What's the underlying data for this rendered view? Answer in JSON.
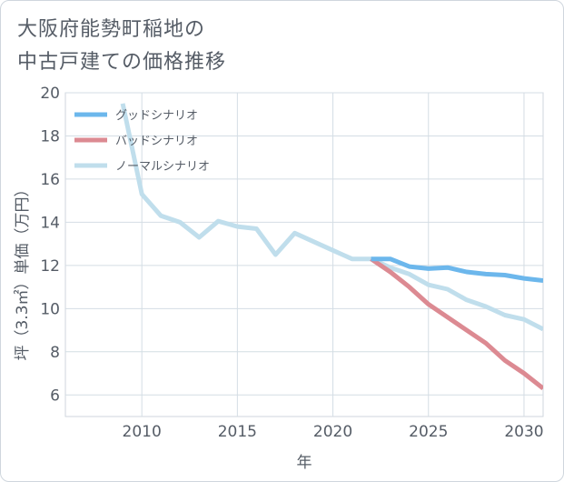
{
  "title_line1": "大阪府能勢町稲地の",
  "title_line2": "中古戸建ての価格推移",
  "chart_data": {
    "type": "line",
    "xlabel": "年",
    "ylabel": "坪（3.3㎡）単価（万円）",
    "xlim": [
      2006,
      2031
    ],
    "ylim": [
      5,
      20
    ],
    "xticks": [
      2010,
      2015,
      2020,
      2025,
      2030
    ],
    "yticks": [
      6,
      8,
      10,
      12,
      14,
      16,
      18,
      20
    ],
    "grid": true,
    "legend_position": "top-left",
    "series": [
      {
        "name": "グッドシナリオ",
        "color": "#6cb7ec",
        "x": [
          2022,
          2023,
          2024,
          2025,
          2026,
          2027,
          2028,
          2029,
          2030,
          2031
        ],
        "y": [
          12.3,
          12.3,
          11.95,
          11.85,
          11.9,
          11.7,
          11.6,
          11.55,
          11.4,
          11.3
        ]
      },
      {
        "name": "バッドシナリオ",
        "color": "#dc8a92",
        "x": [
          2022,
          2023,
          2024,
          2025,
          2026,
          2027,
          2028,
          2029,
          2030,
          2031
        ],
        "y": [
          12.3,
          11.7,
          11.0,
          10.2,
          9.6,
          9.0,
          8.4,
          7.6,
          7.0,
          6.3
        ]
      },
      {
        "name": "ノーマルシナリオ",
        "color": "#c0deec",
        "x": [
          2009,
          2010,
          2011,
          2012,
          2013,
          2014,
          2015,
          2016,
          2017,
          2018,
          2019,
          2020,
          2021,
          2022,
          2023,
          2024,
          2025,
          2026,
          2027,
          2028,
          2029,
          2030,
          2031
        ],
        "y": [
          19.5,
          15.3,
          14.3,
          14.0,
          13.3,
          14.05,
          13.8,
          13.7,
          12.5,
          13.5,
          13.1,
          12.7,
          12.3,
          12.3,
          11.9,
          11.6,
          11.1,
          10.9,
          10.4,
          10.1,
          9.7,
          9.5,
          9.05
        ]
      }
    ]
  }
}
